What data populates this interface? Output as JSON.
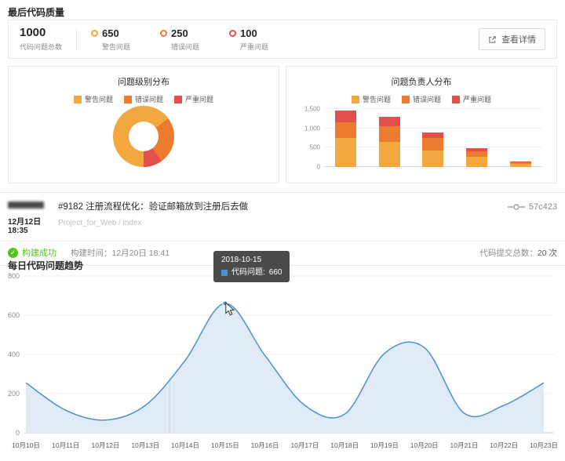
{
  "sections": {
    "quality_title": "最后代码质量",
    "trend_title": "每日代码问题趋势"
  },
  "colors": {
    "warning": "#f3a73f",
    "error": "#ed7b2f",
    "critical": "#e2504c",
    "line": "#4a90d2",
    "line_fill": "#e1ebf7",
    "success": "#52c41a"
  },
  "summary": {
    "total": {
      "value": "1000",
      "label": "代码问题总数"
    },
    "stats": [
      {
        "value": "650",
        "label": "警告问题"
      },
      {
        "value": "250",
        "label": "错误问题"
      },
      {
        "value": "100",
        "label": "严重问题"
      }
    ],
    "detail_button": "查看详情"
  },
  "commit": {
    "title": "#9182 注册流程优化：验证邮箱放到注册后去做",
    "time": "12月12日 18:35",
    "project": "Project_for_Web / index",
    "hash": "57c423",
    "build_status": "构建成功",
    "build_time": "构建时间：12月20日 18:41",
    "commit_total_label": "代码提交总数：",
    "commit_total_value": "20 次"
  },
  "tooltip": {
    "date": "2018-10-15",
    "label": "代码问题:",
    "value": "660"
  },
  "chart_data": [
    {
      "type": "pie",
      "title": "问题级别分布",
      "donut": true,
      "legend": [
        "警告问题",
        "错误问题",
        "严重问题"
      ],
      "labels": [
        "警告问题",
        "错误问题",
        "严重问题"
      ],
      "values": [
        650,
        250,
        100
      ]
    },
    {
      "type": "bar",
      "title": "问题负责人分布",
      "stacked": true,
      "legend": [
        "警告问题",
        "错误问题",
        "严重问题"
      ],
      "categories": [
        "",
        "",
        "",
        "",
        ""
      ],
      "series": [
        {
          "name": "警告问题",
          "values": [
            750,
            650,
            420,
            260,
            80
          ]
        },
        {
          "name": "错误问题",
          "values": [
            400,
            400,
            330,
            140,
            35
          ]
        },
        {
          "name": "严重问题",
          "values": [
            300,
            250,
            150,
            80,
            20
          ]
        }
      ],
      "ylim": [
        0,
        1500
      ],
      "yticks": [
        0,
        500,
        1000,
        1500
      ]
    },
    {
      "type": "area",
      "title": "每日代码问题趋势",
      "x": [
        "10月10日",
        "10月11日",
        "10月12日",
        "10月13日",
        "10月14日",
        "10月15日",
        "10月16日",
        "10月17日",
        "10月18日",
        "10月19日",
        "10月20日",
        "10月21日",
        "10月22日",
        "10月23日"
      ],
      "series": [
        {
          "name": "代码问题",
          "values": [
            255,
            115,
            65,
            140,
            370,
            660,
            395,
            140,
            95,
            405,
            435,
            100,
            140,
            255
          ]
        }
      ],
      "ylim": [
        0,
        800
      ],
      "yticks": [
        0,
        200,
        400,
        600,
        800
      ],
      "grid": true,
      "highlight": {
        "x": "10月15日",
        "value": 660
      }
    }
  ]
}
